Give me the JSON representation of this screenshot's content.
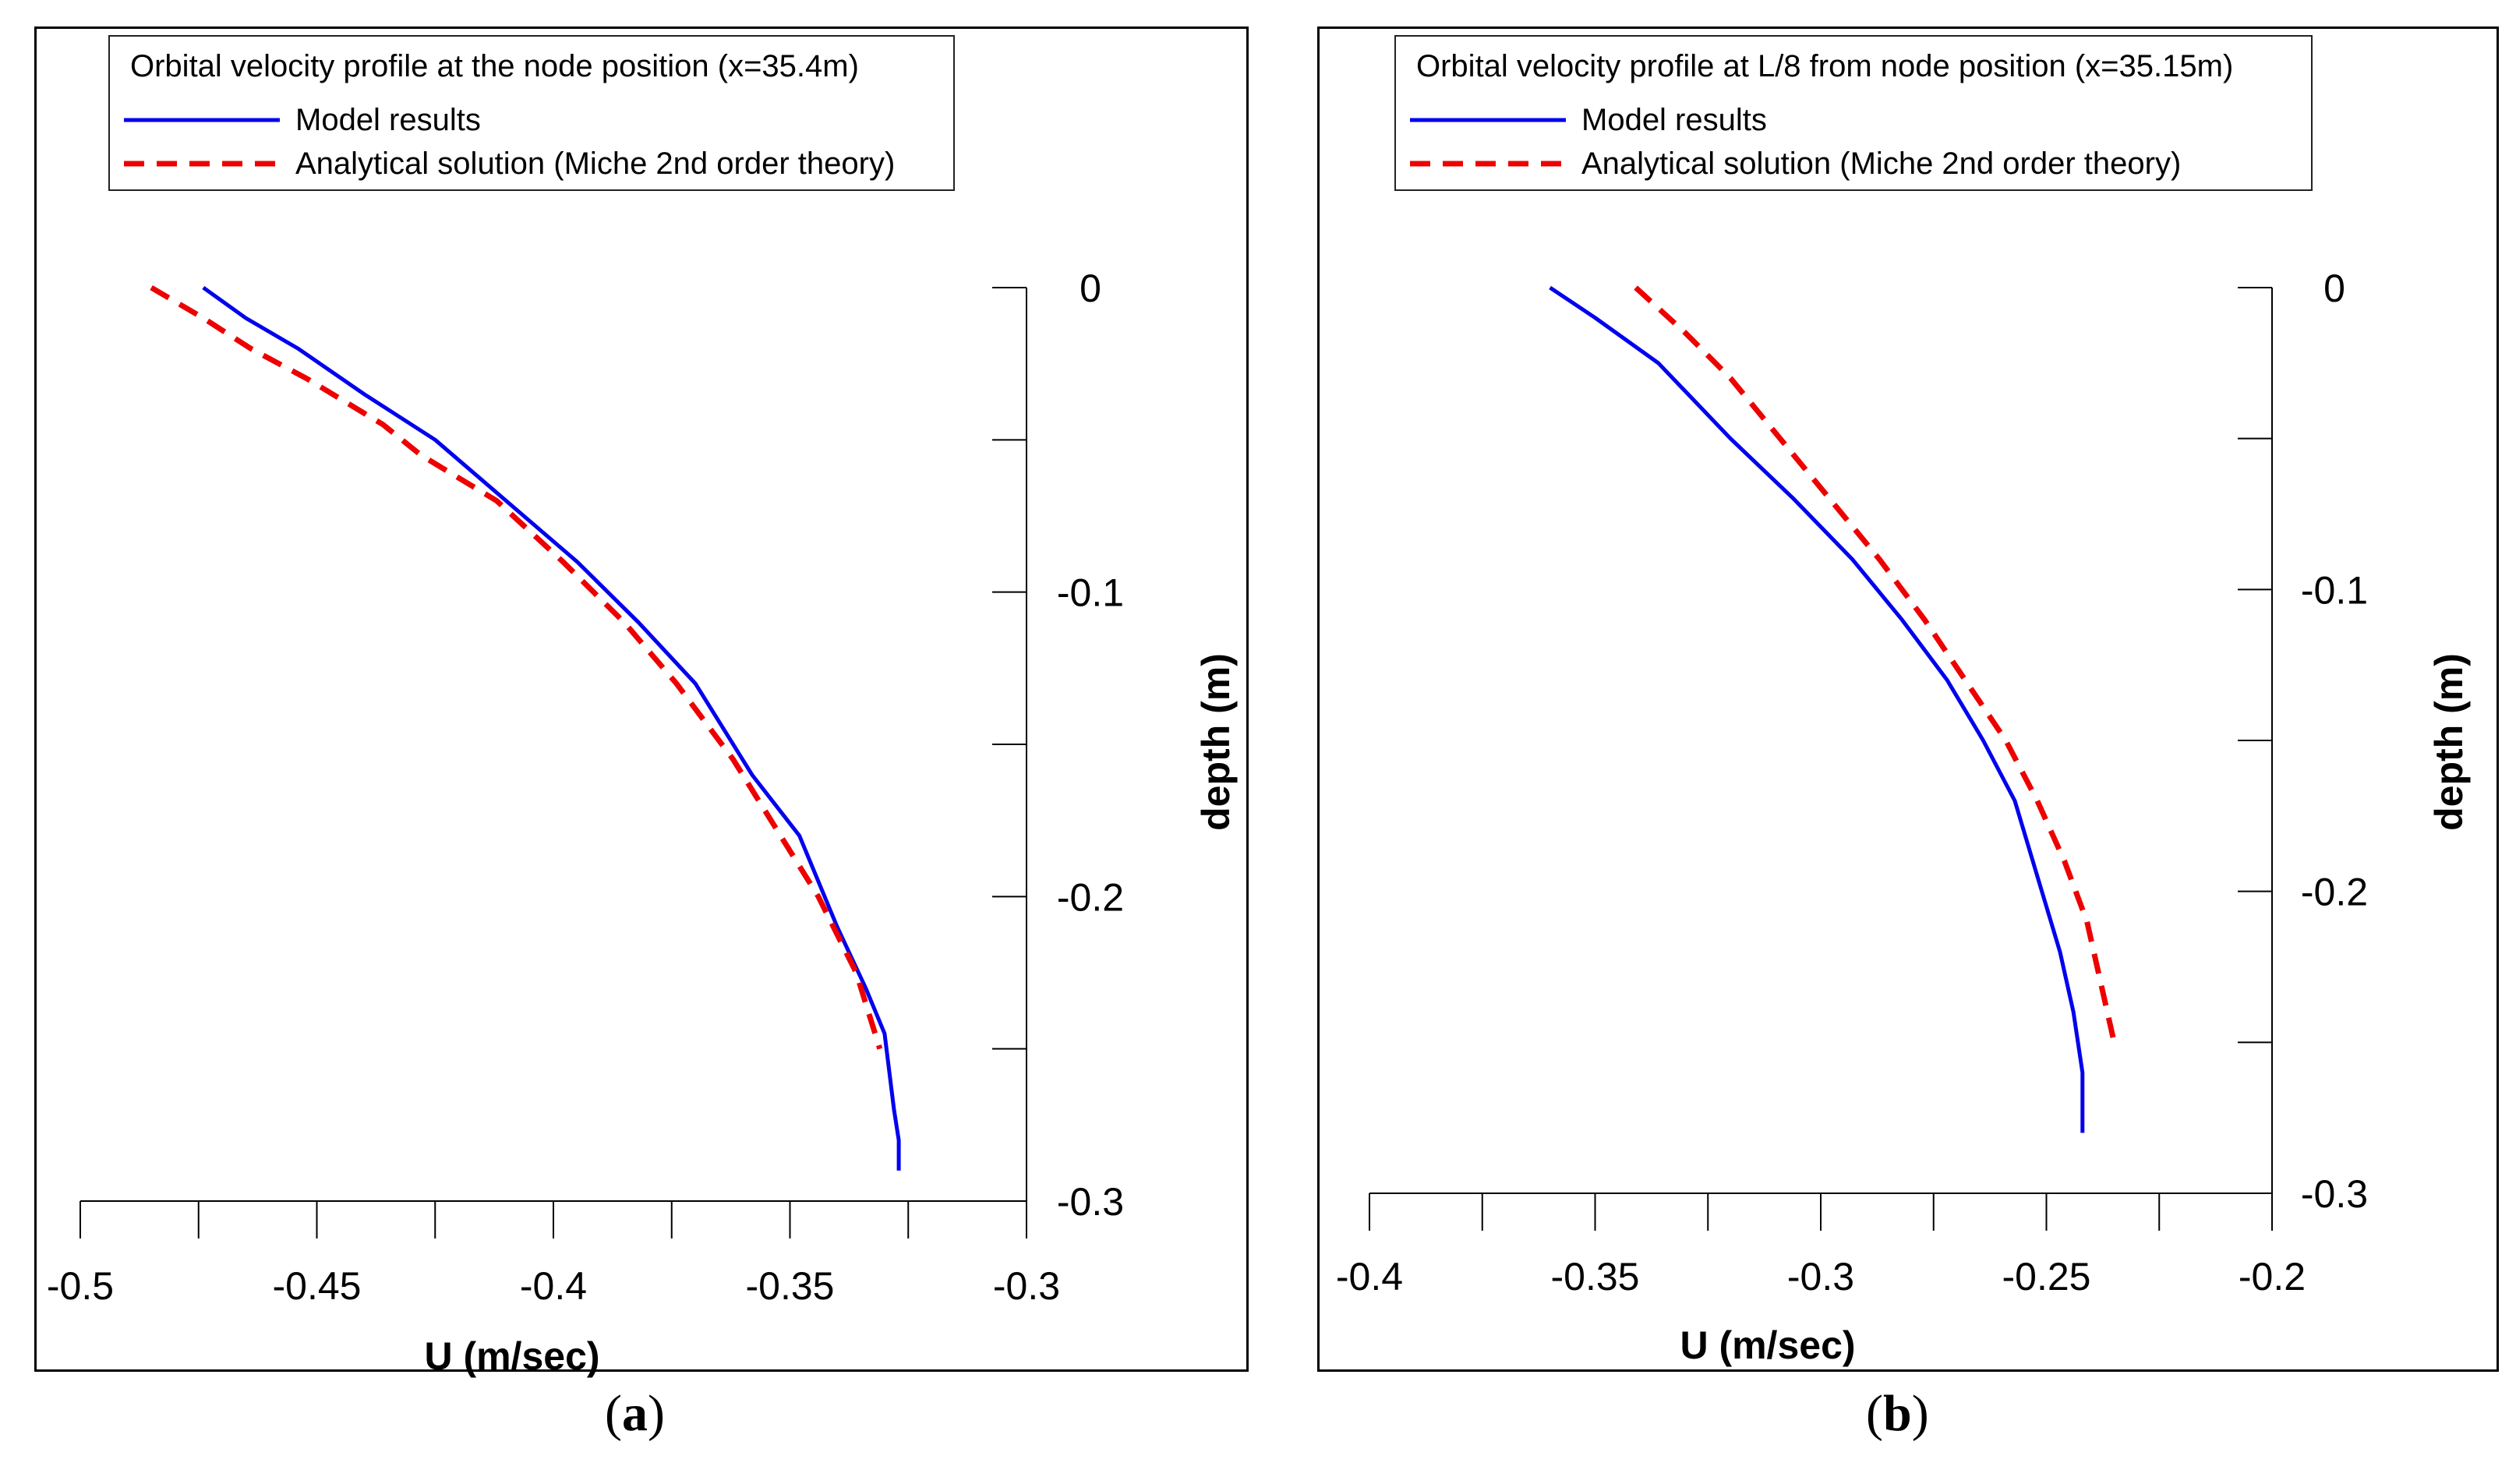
{
  "colors": {
    "model": "#0000ee",
    "analytical": "#ee0000",
    "axis": "#000000"
  },
  "captions": [
    {
      "open": "(",
      "letter": "a",
      "close": ")"
    },
    {
      "open": "(",
      "letter": "b",
      "close": ")"
    }
  ],
  "chart_data": [
    {
      "type": "line",
      "title": "Orbital velocity profile at the node position (x=35.4m)",
      "xlabel": "U (m/sec)",
      "ylabel": "depth (m)",
      "xlim": [
        -0.5,
        -0.3
      ],
      "ylim": [
        -0.3,
        0
      ],
      "x_ticks": [
        -0.5,
        -0.45,
        -0.4,
        -0.35,
        -0.3
      ],
      "x_tick_labels": [
        "-0.5",
        "-0.45",
        "-0.4",
        "-0.35",
        "-0.3"
      ],
      "y_ticks": [
        0,
        -0.1,
        -0.2,
        -0.3
      ],
      "y_tick_labels": [
        "0",
        "-0.1",
        "-0.2",
        "-0.3"
      ],
      "legend_position": "top-left",
      "series": [
        {
          "name": "Model results",
          "style": "solid",
          "points": [
            [
              -0.474,
              0
            ],
            [
              -0.465,
              -0.01
            ],
            [
              -0.454,
              -0.02
            ],
            [
              -0.44,
              -0.035
            ],
            [
              -0.425,
              -0.05
            ],
            [
              -0.41,
              -0.07
            ],
            [
              -0.395,
              -0.09
            ],
            [
              -0.382,
              -0.11
            ],
            [
              -0.37,
              -0.13
            ],
            [
              -0.358,
              -0.16
            ],
            [
              -0.348,
              -0.18
            ],
            [
              -0.34,
              -0.21
            ],
            [
              -0.334,
              -0.23
            ],
            [
              -0.33,
              -0.245
            ],
            [
              -0.328,
              -0.27
            ],
            [
              -0.327,
              -0.28
            ],
            [
              -0.327,
              -0.29
            ]
          ]
        },
        {
          "name": "Analytical solution (Miche 2nd order theory)",
          "style": "dashed",
          "points": [
            [
              -0.485,
              0
            ],
            [
              -0.474,
              -0.01
            ],
            [
              -0.464,
              -0.02
            ],
            [
              -0.452,
              -0.03
            ],
            [
              -0.436,
              -0.045
            ],
            [
              -0.428,
              -0.055
            ],
            [
              -0.412,
              -0.07
            ],
            [
              -0.398,
              -0.09
            ],
            [
              -0.385,
              -0.11
            ],
            [
              -0.374,
              -0.13
            ],
            [
              -0.362,
              -0.155
            ],
            [
              -0.352,
              -0.18
            ],
            [
              -0.344,
              -0.2
            ],
            [
              -0.336,
              -0.225
            ],
            [
              -0.331,
              -0.25
            ]
          ]
        }
      ]
    },
    {
      "type": "line",
      "title": "Orbital velocity profile at L/8 from node position (x=35.15m)",
      "xlabel": "U (m/sec)",
      "ylabel": "depth (m)",
      "xlim": [
        -0.4,
        -0.2
      ],
      "ylim": [
        -0.3,
        0
      ],
      "x_ticks": [
        -0.4,
        -0.35,
        -0.3,
        -0.25,
        -0.2
      ],
      "x_tick_labels": [
        "-0.4",
        "-0.35",
        "-0.3",
        "-0.25",
        "-0.2"
      ],
      "y_ticks": [
        0,
        -0.1,
        -0.2,
        -0.3
      ],
      "y_tick_labels": [
        "0",
        "-0.1",
        "-0.2",
        "-0.3"
      ],
      "legend_position": "top-left",
      "series": [
        {
          "name": "Model results",
          "style": "solid",
          "points": [
            [
              -0.36,
              0
            ],
            [
              -0.35,
              -0.01
            ],
            [
              -0.336,
              -0.025
            ],
            [
              -0.32,
              -0.05
            ],
            [
              -0.306,
              -0.07
            ],
            [
              -0.293,
              -0.09
            ],
            [
              -0.282,
              -0.11
            ],
            [
              -0.272,
              -0.13
            ],
            [
              -0.264,
              -0.15
            ],
            [
              -0.257,
              -0.17
            ],
            [
              -0.251,
              -0.2
            ],
            [
              -0.247,
              -0.22
            ],
            [
              -0.244,
              -0.24
            ],
            [
              -0.242,
              -0.26
            ],
            [
              -0.242,
              -0.28
            ]
          ]
        },
        {
          "name": "Analytical solution (Miche 2nd order theory)",
          "style": "dashed",
          "points": [
            [
              -0.341,
              0
            ],
            [
              -0.33,
              -0.015
            ],
            [
              -0.32,
              -0.03
            ],
            [
              -0.309,
              -0.05
            ],
            [
              -0.298,
              -0.07
            ],
            [
              -0.287,
              -0.09
            ],
            [
              -0.277,
              -0.11
            ],
            [
              -0.268,
              -0.13
            ],
            [
              -0.259,
              -0.15
            ],
            [
              -0.252,
              -0.17
            ],
            [
              -0.246,
              -0.19
            ],
            [
              -0.241,
              -0.21
            ],
            [
              -0.238,
              -0.23
            ],
            [
              -0.235,
              -0.25
            ]
          ]
        }
      ]
    }
  ]
}
